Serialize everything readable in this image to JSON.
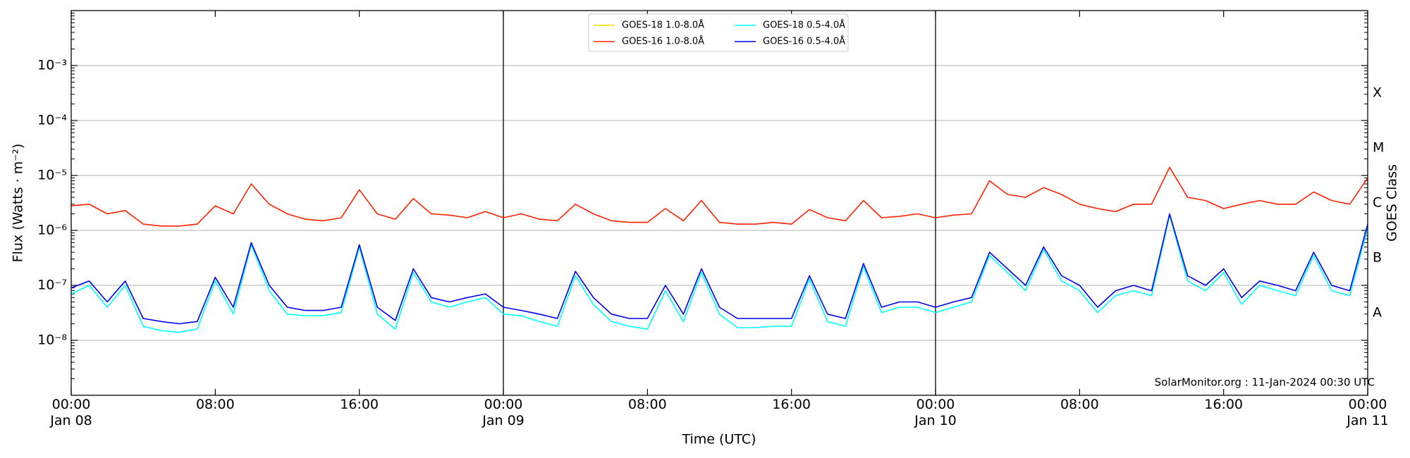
{
  "chart_data": {
    "type": "line",
    "ylabel": "Flux (Watts · m⁻²)",
    "y2label": "GOES Class",
    "xlabel": "Time (UTC)",
    "annotation": "SolarMonitor.org : 11-Jan-2024 00:30 UTC",
    "log_y": true,
    "grid": true,
    "legend": "upper center",
    "xlim": [
      "Jan 08 00:00",
      "Jan 11 00:00"
    ],
    "xticks": [
      {
        "value": "Jan 08 00:00",
        "label": "00:00\nJan 08"
      },
      {
        "value": "Jan 08 08:00",
        "label": "08:00"
      },
      {
        "value": "Jan 08 16:00",
        "label": "16:00"
      },
      {
        "value": "Jan 09 00:00",
        "label": "00:00\nJan 09"
      },
      {
        "value": "Jan 09 08:00",
        "label": "08:00"
      },
      {
        "value": "Jan 09 16:00",
        "label": "16:00"
      },
      {
        "value": "Jan 10 00:00",
        "label": "00:00\nJan 10"
      },
      {
        "value": "Jan 10 08:00",
        "label": "08:00"
      },
      {
        "value": "Jan 10 16:00",
        "label": "16:00"
      },
      {
        "value": "Jan 11 00:00",
        "label": "00:00\nJan 11"
      }
    ],
    "ylim": [
      1e-09,
      0.01
    ],
    "yticks": [
      {
        "value": 1e-08,
        "label": "10⁻⁸"
      },
      {
        "value": 1e-07,
        "label": "10⁻⁷"
      },
      {
        "value": 1e-06,
        "label": "10⁻⁶"
      },
      {
        "value": 1e-05,
        "label": "10⁻⁵"
      },
      {
        "value": 0.0001,
        "label": "10⁻⁴"
      },
      {
        "value": 0.001,
        "label": "10⁻³"
      }
    ],
    "y2lim": [
      1e-09,
      0.01
    ],
    "y2ticks": [
      {
        "value": 3.162e-08,
        "label": "A"
      },
      {
        "value": 3.162e-07,
        "label": "B"
      },
      {
        "value": 3.162e-06,
        "label": "C"
      },
      {
        "value": 3.162e-05,
        "label": "M"
      },
      {
        "value": 0.0003162,
        "label": "X"
      }
    ],
    "x": [
      "Jan 08 00:00",
      "Jan 08 01:00",
      "Jan 08 02:00",
      "Jan 08 03:00",
      "Jan 08 04:00",
      "Jan 08 05:00",
      "Jan 08 06:00",
      "Jan 08 07:00",
      "Jan 08 08:00",
      "Jan 08 09:00",
      "Jan 08 10:00",
      "Jan 08 11:00",
      "Jan 08 12:00",
      "Jan 08 13:00",
      "Jan 08 14:00",
      "Jan 08 15:00",
      "Jan 08 16:00",
      "Jan 08 17:00",
      "Jan 08 18:00",
      "Jan 08 19:00",
      "Jan 08 20:00",
      "Jan 08 21:00",
      "Jan 08 22:00",
      "Jan 08 23:00",
      "Jan 09 00:00",
      "Jan 09 01:00",
      "Jan 09 02:00",
      "Jan 09 03:00",
      "Jan 09 04:00",
      "Jan 09 05:00",
      "Jan 09 06:00",
      "Jan 09 07:00",
      "Jan 09 08:00",
      "Jan 09 09:00",
      "Jan 09 10:00",
      "Jan 09 11:00",
      "Jan 09 12:00",
      "Jan 09 13:00",
      "Jan 09 14:00",
      "Jan 09 15:00",
      "Jan 09 16:00",
      "Jan 09 17:00",
      "Jan 09 18:00",
      "Jan 09 19:00",
      "Jan 09 20:00",
      "Jan 09 21:00",
      "Jan 09 22:00",
      "Jan 09 23:00",
      "Jan 10 00:00",
      "Jan 10 01:00",
      "Jan 10 02:00",
      "Jan 10 03:00",
      "Jan 10 04:00",
      "Jan 10 05:00",
      "Jan 10 06:00",
      "Jan 10 07:00",
      "Jan 10 08:00",
      "Jan 10 09:00",
      "Jan 10 10:00",
      "Jan 10 11:00",
      "Jan 10 12:00",
      "Jan 10 13:00",
      "Jan 10 14:00",
      "Jan 10 15:00",
      "Jan 10 16:00",
      "Jan 10 17:00",
      "Jan 10 18:00",
      "Jan 10 19:00",
      "Jan 10 20:00",
      "Jan 10 21:00",
      "Jan 10 22:00",
      "Jan 10 23:00",
      "Jan 11 00:00"
    ],
    "series": [
      {
        "name": "GOES-18 1.0-8.0Å",
        "color": "#ffd700",
        "values": [
          null,
          null,
          null,
          null,
          null,
          null,
          null,
          null,
          null,
          null,
          null,
          null,
          null,
          null,
          null,
          null,
          null,
          null,
          null,
          null,
          null,
          null,
          null,
          null,
          null,
          null,
          null,
          null,
          null,
          null,
          null,
          null,
          null,
          null,
          null,
          null,
          null,
          null,
          null,
          null,
          null,
          null,
          null,
          null,
          null,
          null,
          null,
          null,
          null,
          null,
          null,
          null,
          null,
          null,
          null,
          null,
          null,
          null,
          null,
          null,
          null,
          null,
          null,
          null,
          null,
          null,
          null,
          null,
          null,
          null,
          null,
          null,
          null
        ]
      },
      {
        "name": "GOES-16 1.0-8.0Å",
        "color": "#ff2200",
        "values": [
          2.8e-06,
          3e-06,
          2e-06,
          2.3e-06,
          1.3e-06,
          1.2e-06,
          1.2e-06,
          1.3e-06,
          2.8e-06,
          2e-06,
          7e-06,
          3e-06,
          2e-06,
          1.6e-06,
          1.5e-06,
          1.7e-06,
          5.5e-06,
          2e-06,
          1.6e-06,
          3.8e-06,
          2e-06,
          1.9e-06,
          1.7e-06,
          2.2e-06,
          1.7e-06,
          2e-06,
          1.6e-06,
          1.5e-06,
          3e-06,
          2e-06,
          1.5e-06,
          1.4e-06,
          1.4e-06,
          2.5e-06,
          1.5e-06,
          3.5e-06,
          1.4e-06,
          1.3e-06,
          1.3e-06,
          1.4e-06,
          1.3e-06,
          2.4e-06,
          1.7e-06,
          1.5e-06,
          3.5e-06,
          1.7e-06,
          1.8e-06,
          2e-06,
          1.7e-06,
          1.9e-06,
          2e-06,
          8e-06,
          4.5e-06,
          4e-06,
          6e-06,
          4.5e-06,
          3e-06,
          2.5e-06,
          2.2e-06,
          3e-06,
          3e-06,
          1.4e-05,
          4e-06,
          3.5e-06,
          2.5e-06,
          3e-06,
          3.5e-06,
          3e-06,
          3e-06,
          5e-06,
          3.5e-06,
          3e-06,
          9e-06
        ]
      },
      {
        "name": "GOES-18 0.5-4.0Å",
        "color": "#00ffff",
        "values": [
          7e-08,
          1e-07,
          4e-08,
          1e-07,
          1.8e-08,
          1.5e-08,
          1.4e-08,
          1.6e-08,
          1.2e-07,
          3e-08,
          5.5e-07,
          8e-08,
          3e-08,
          2.8e-08,
          2.8e-08,
          3.2e-08,
          5e-07,
          3e-08,
          1.6e-08,
          1.7e-07,
          5e-08,
          4e-08,
          5e-08,
          6e-08,
          3e-08,
          2.8e-08,
          2.2e-08,
          1.8e-08,
          1.5e-07,
          4.5e-08,
          2.2e-08,
          1.8e-08,
          1.6e-08,
          8e-08,
          2.2e-08,
          1.7e-07,
          3e-08,
          1.7e-08,
          1.7e-08,
          1.8e-08,
          1.8e-08,
          1.3e-07,
          2.2e-08,
          1.8e-08,
          2.2e-07,
          3.2e-08,
          4e-08,
          4e-08,
          3.2e-08,
          4e-08,
          5e-08,
          3.5e-07,
          1.7e-07,
          8e-08,
          4.5e-07,
          1.2e-07,
          8e-08,
          3.2e-08,
          6.5e-08,
          8e-08,
          6.5e-08,
          1.9e-06,
          1.2e-07,
          8e-08,
          1.7e-07,
          4.5e-08,
          1e-07,
          8e-08,
          6.5e-08,
          3.5e-07,
          8e-08,
          6.5e-08,
          1.1e-06
        ]
      },
      {
        "name": "GOES-16 0.5-4.0Å",
        "color": "#0000ee",
        "values": [
          9e-08,
          1.2e-07,
          5e-08,
          1.2e-07,
          2.5e-08,
          2.2e-08,
          2e-08,
          2.2e-08,
          1.4e-07,
          4e-08,
          6e-07,
          1e-07,
          4e-08,
          3.5e-08,
          3.5e-08,
          4e-08,
          5.5e-07,
          4e-08,
          2.3e-08,
          2e-07,
          6e-08,
          5e-08,
          6e-08,
          7e-08,
          4e-08,
          3.5e-08,
          3e-08,
          2.5e-08,
          1.8e-07,
          6e-08,
          3e-08,
          2.5e-08,
          2.5e-08,
          1e-07,
          3e-08,
          2e-07,
          4e-08,
          2.5e-08,
          2.5e-08,
          2.5e-08,
          2.5e-08,
          1.5e-07,
          3e-08,
          2.5e-08,
          2.5e-07,
          4e-08,
          5e-08,
          5e-08,
          4e-08,
          5e-08,
          6e-08,
          4e-07,
          2e-07,
          1e-07,
          5e-07,
          1.5e-07,
          1e-07,
          4e-08,
          8e-08,
          1e-07,
          8e-08,
          2e-06,
          1.5e-07,
          1e-07,
          2e-07,
          6e-08,
          1.2e-07,
          1e-07,
          8e-08,
          4e-07,
          1e-07,
          8e-08,
          1.3e-06
        ]
      }
    ]
  }
}
